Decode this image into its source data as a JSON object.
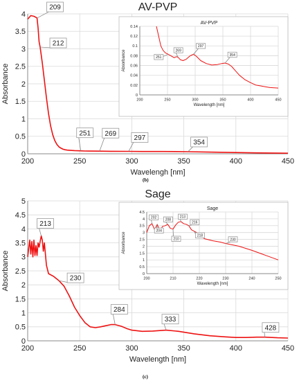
{
  "panel_labels": [
    "(b)",
    "(c)"
  ],
  "chart_data": [
    {
      "type": "line",
      "title": "AV-PVP",
      "xlabel": "Wavelengh [nm]",
      "ylabel": "Absorbance",
      "xlim": [
        200,
        450
      ],
      "ylim": [
        0,
        4
      ],
      "xticks": [
        200,
        250,
        300,
        350,
        400,
        450
      ],
      "yticks": [
        0,
        0.5,
        1,
        1.5,
        2,
        2.5,
        3,
        3.5,
        4
      ],
      "grid": true,
      "color": "#ee1111",
      "x": [
        200,
        203,
        206,
        208,
        209,
        210,
        211,
        212,
        214,
        216,
        218,
        220,
        222,
        224,
        226,
        228,
        230,
        232,
        234,
        236,
        238,
        240,
        245,
        250,
        255,
        260,
        269,
        280,
        297,
        310,
        330,
        354,
        380,
        400,
        420,
        450
      ],
      "y": [
        3.85,
        3.95,
        3.93,
        3.9,
        3.88,
        3.6,
        3.2,
        3.05,
        2.6,
        2.1,
        1.6,
        1.15,
        0.8,
        0.55,
        0.38,
        0.27,
        0.2,
        0.16,
        0.13,
        0.115,
        0.105,
        0.1,
        0.092,
        0.085,
        0.08,
        0.078,
        0.075,
        0.072,
        0.07,
        0.066,
        0.065,
        0.06,
        0.045,
        0.035,
        0.025,
        0.015
      ],
      "annotations": [
        {
          "label": "209",
          "x": 209,
          "y": 3.88
        },
        {
          "label": "212",
          "x": 212,
          "y": 3.05
        },
        {
          "label": "251",
          "x": 251,
          "y": 0.085
        },
        {
          "label": "269",
          "x": 269,
          "y": 0.075
        },
        {
          "label": "297",
          "x": 297,
          "y": 0.07
        },
        {
          "label": "354",
          "x": 354,
          "y": 0.06
        }
      ],
      "inset": {
        "title": "AV-PVP",
        "xlabel": "Wavelength [nm]",
        "ylabel": "Absorbance",
        "xlim": [
          200,
          450
        ],
        "ylim": [
          0,
          0.14
        ],
        "xticks": [
          200,
          250,
          300,
          350,
          400,
          450
        ],
        "yticks": [
          0,
          0.02,
          0.04,
          0.06,
          0.08,
          0.1,
          0.12,
          0.14
        ],
        "ytick_labels": [
          "0",
          "0.02",
          "0.04",
          "0.06",
          "0.08",
          "0.1",
          "0.12",
          "0.14"
        ],
        "x": [
          230,
          234,
          238,
          242,
          246,
          251,
          256,
          262,
          266,
          269,
          273,
          278,
          284,
          290,
          295,
          297,
          302,
          310,
          320,
          330,
          340,
          348,
          354,
          360,
          366,
          372,
          380,
          390,
          400,
          410,
          420,
          435,
          450
        ],
        "y": [
          0.14,
          0.12,
          0.1,
          0.091,
          0.086,
          0.083,
          0.08,
          0.076,
          0.078,
          0.077,
          0.072,
          0.07,
          0.073,
          0.079,
          0.082,
          0.083,
          0.079,
          0.07,
          0.064,
          0.061,
          0.062,
          0.064,
          0.065,
          0.063,
          0.058,
          0.05,
          0.04,
          0.031,
          0.025,
          0.02,
          0.018,
          0.015,
          0.014
        ],
        "annotations": [
          {
            "label": "251",
            "x": 251,
            "y": 0.083
          },
          {
            "label": "269",
            "x": 269,
            "y": 0.077
          },
          {
            "label": "297",
            "x": 297,
            "y": 0.083
          },
          {
            "label": "354",
            "x": 354,
            "y": 0.065
          }
        ]
      }
    },
    {
      "type": "line",
      "title": "Sage",
      "xlabel": "Wavelength [nm]",
      "ylabel": "Absorbance",
      "xlim": [
        200,
        450
      ],
      "ylim": [
        0,
        5
      ],
      "xticks": [
        200,
        250,
        300,
        350,
        400,
        450
      ],
      "yticks": [
        0,
        0.5,
        1,
        1.5,
        2,
        2.5,
        3,
        3.5,
        4,
        4.5,
        5
      ],
      "grid": true,
      "color": "#ee1111",
      "x": [
        200,
        202,
        203,
        204,
        205,
        206,
        207,
        208,
        209,
        210,
        211,
        212,
        213,
        214,
        215,
        216,
        218,
        220,
        225,
        230,
        235,
        240,
        245,
        250,
        255,
        260,
        265,
        270,
        275,
        280,
        284,
        290,
        295,
        300,
        310,
        320,
        333,
        345,
        360,
        375,
        390,
        400,
        410,
        420,
        428,
        440,
        450
      ],
      "y": [
        3.0,
        3.6,
        3.1,
        3.55,
        3.0,
        3.6,
        3.05,
        3.4,
        3.05,
        3.5,
        3.35,
        3.55,
        3.75,
        3.6,
        3.2,
        3.5,
        2.7,
        2.4,
        2.3,
        2.15,
        1.95,
        1.6,
        1.2,
        0.9,
        0.65,
        0.5,
        0.47,
        0.5,
        0.54,
        0.58,
        0.58,
        0.52,
        0.44,
        0.38,
        0.34,
        0.35,
        0.38,
        0.34,
        0.25,
        0.18,
        0.14,
        0.12,
        0.12,
        0.13,
        0.13,
        0.11,
        0.1
      ],
      "annotations": [
        {
          "label": "213",
          "x": 213,
          "y": 3.75
        },
        {
          "label": "230",
          "x": 230,
          "y": 2.15
        },
        {
          "label": "284",
          "x": 284,
          "y": 0.58
        },
        {
          "label": "333",
          "x": 333,
          "y": 0.38
        },
        {
          "label": "428",
          "x": 428,
          "y": 0.13
        }
      ],
      "inset": {
        "title": "Sage",
        "xlabel": "Wavelength [nm]",
        "ylabel": "Absorbance",
        "xlim": [
          200,
          250
        ],
        "ylim": [
          0,
          4.5
        ],
        "xticks": [
          200,
          210,
          220,
          230,
          240,
          250
        ],
        "yticks": [
          0,
          0.5,
          1,
          1.5,
          2,
          2.5,
          3,
          3.5,
          4,
          4.5
        ],
        "ytick_labels": [
          "0",
          "0.5",
          "1",
          "1.5",
          "2",
          "2.5",
          "3",
          "3.5",
          "4",
          "4.5"
        ],
        "x": [
          200,
          201,
          202,
          203,
          204,
          205,
          206,
          207,
          208,
          209,
          210,
          211,
          212,
          213,
          214,
          215,
          216,
          217,
          218,
          219,
          220,
          222,
          225,
          228,
          230,
          235,
          240,
          245,
          250
        ],
        "y": [
          3.0,
          3.5,
          3.65,
          3.2,
          3.6,
          3.1,
          3.45,
          3.5,
          3.6,
          3.3,
          3.25,
          3.55,
          3.75,
          3.8,
          3.65,
          3.6,
          3.5,
          3.2,
          3.1,
          3.0,
          2.75,
          2.55,
          2.4,
          2.3,
          2.2,
          2.0,
          1.7,
          1.35,
          1.0
        ],
        "annotations": [
          {
            "label": "202",
            "x": 202,
            "y": 3.65
          },
          {
            "label": "204",
            "x": 204,
            "y": 3.6
          },
          {
            "label": "208",
            "x": 208,
            "y": 3.6
          },
          {
            "label": "210",
            "x": 210,
            "y": 3.25
          },
          {
            "label": "213",
            "x": 213,
            "y": 3.8
          },
          {
            "label": "216",
            "x": 216,
            "y": 3.5
          },
          {
            "label": "218",
            "x": 218,
            "y": 3.1
          },
          {
            "label": "230",
            "x": 230,
            "y": 2.2
          }
        ]
      }
    }
  ]
}
